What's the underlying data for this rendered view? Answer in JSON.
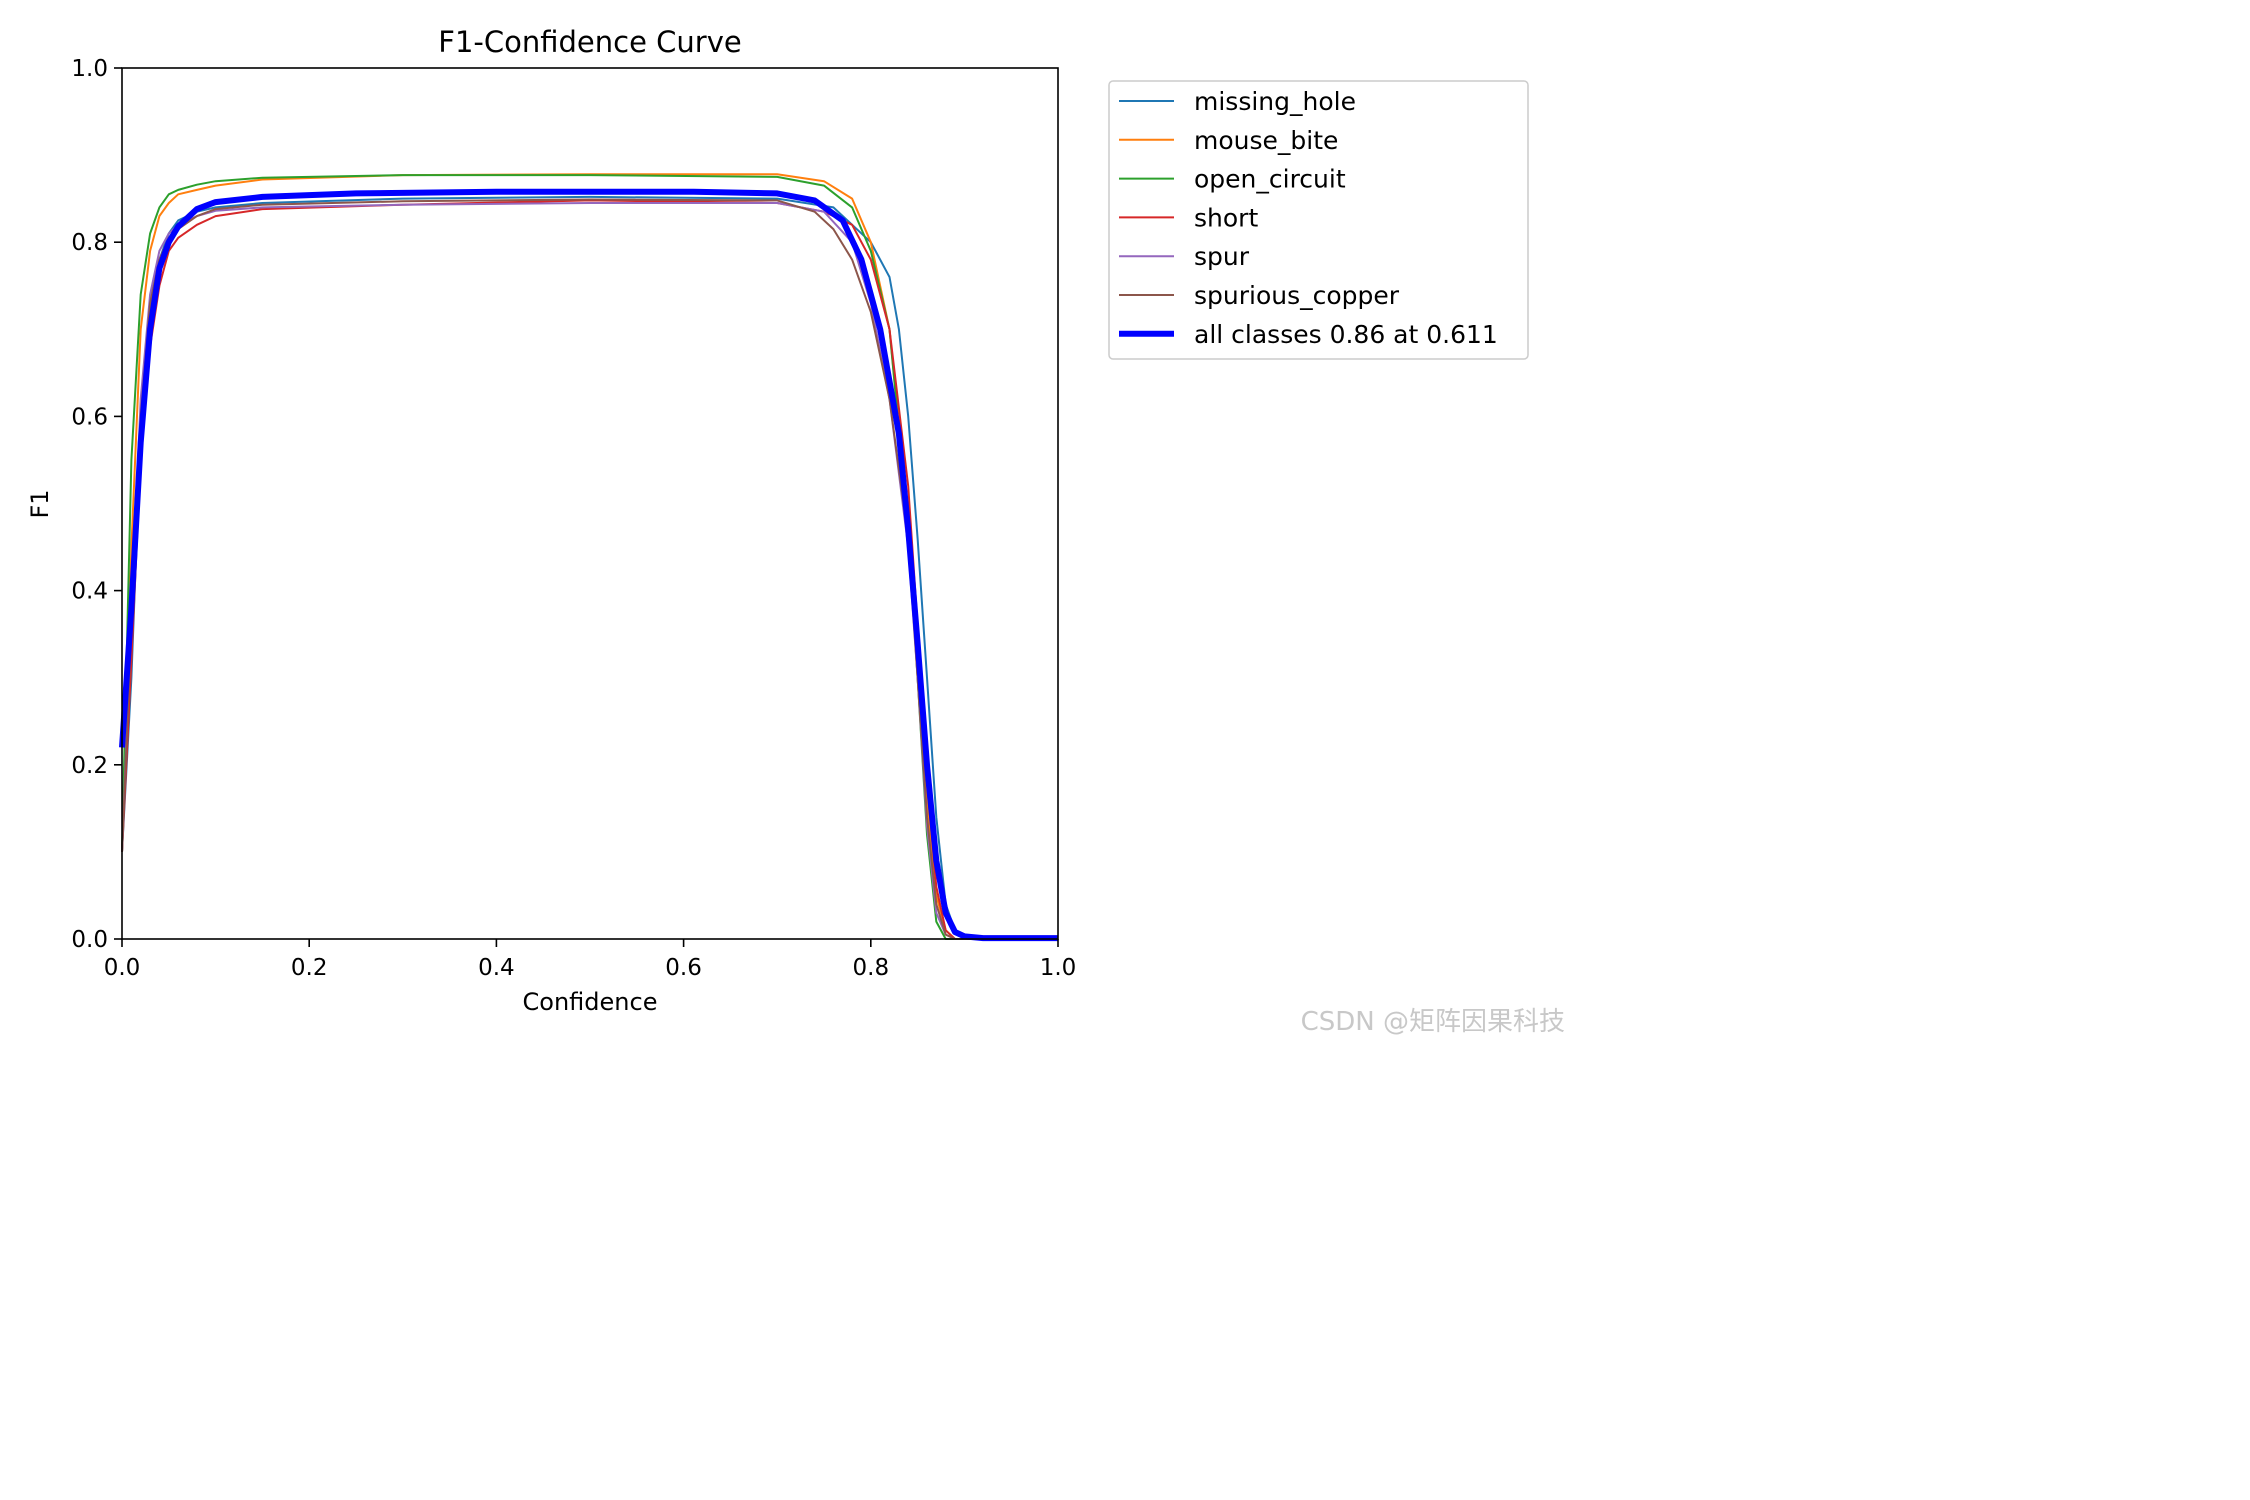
{
  "chart_data": {
    "type": "line",
    "title": "F1-Confidence Curve",
    "xlabel": "Confidence",
    "ylabel": "F1",
    "xlim": [
      0.0,
      1.0
    ],
    "ylim": [
      0.0,
      1.0
    ],
    "xticks": [
      "0.0",
      "0.2",
      "0.4",
      "0.6",
      "0.8",
      "1.0"
    ],
    "yticks": [
      "0.0",
      "0.2",
      "0.4",
      "0.6",
      "0.8",
      "1.0"
    ],
    "grid": false,
    "legend_position": "outside-right",
    "series": [
      {
        "name": "missing_hole",
        "color": "#1f77b4",
        "width": "thin",
        "x": [
          0.0,
          0.01,
          0.02,
          0.03,
          0.04,
          0.05,
          0.06,
          0.08,
          0.1,
          0.15,
          0.3,
          0.5,
          0.7,
          0.76,
          0.8,
          0.82,
          0.83,
          0.84,
          0.85,
          0.86,
          0.87,
          0.88,
          0.89,
          0.9,
          1.0
        ],
        "y": [
          0.1,
          0.3,
          0.58,
          0.72,
          0.78,
          0.81,
          0.825,
          0.835,
          0.84,
          0.845,
          0.85,
          0.852,
          0.85,
          0.84,
          0.8,
          0.76,
          0.7,
          0.6,
          0.46,
          0.3,
          0.14,
          0.04,
          0.01,
          0.0,
          0.0
        ]
      },
      {
        "name": "mouse_bite",
        "color": "#ff7f0e",
        "width": "thin",
        "x": [
          0.0,
          0.01,
          0.02,
          0.03,
          0.04,
          0.05,
          0.06,
          0.08,
          0.1,
          0.15,
          0.3,
          0.5,
          0.7,
          0.75,
          0.78,
          0.8,
          0.82,
          0.84,
          0.85,
          0.86,
          0.87,
          0.88,
          0.89,
          1.0
        ],
        "y": [
          0.1,
          0.45,
          0.7,
          0.79,
          0.83,
          0.845,
          0.855,
          0.86,
          0.865,
          0.872,
          0.877,
          0.878,
          0.878,
          0.87,
          0.85,
          0.8,
          0.7,
          0.48,
          0.32,
          0.16,
          0.05,
          0.01,
          0.0,
          0.0
        ]
      },
      {
        "name": "open_circuit",
        "color": "#2ca02c",
        "width": "thin",
        "x": [
          0.0,
          0.01,
          0.02,
          0.03,
          0.04,
          0.05,
          0.06,
          0.08,
          0.1,
          0.15,
          0.3,
          0.5,
          0.7,
          0.75,
          0.78,
          0.8,
          0.82,
          0.84,
          0.85,
          0.86,
          0.87,
          0.88,
          1.0
        ],
        "y": [
          0.1,
          0.55,
          0.74,
          0.81,
          0.84,
          0.855,
          0.86,
          0.866,
          0.87,
          0.874,
          0.877,
          0.877,
          0.875,
          0.865,
          0.84,
          0.79,
          0.7,
          0.47,
          0.3,
          0.12,
          0.02,
          0.0,
          0.0
        ]
      },
      {
        "name": "short",
        "color": "#d62728",
        "width": "thin",
        "x": [
          0.0,
          0.01,
          0.02,
          0.03,
          0.04,
          0.05,
          0.06,
          0.08,
          0.1,
          0.15,
          0.3,
          0.5,
          0.7,
          0.75,
          0.78,
          0.8,
          0.82,
          0.84,
          0.85,
          0.86,
          0.87,
          0.88,
          0.89,
          1.0
        ],
        "y": [
          0.1,
          0.32,
          0.55,
          0.68,
          0.75,
          0.79,
          0.805,
          0.82,
          0.83,
          0.838,
          0.843,
          0.848,
          0.845,
          0.835,
          0.82,
          0.78,
          0.7,
          0.52,
          0.36,
          0.18,
          0.06,
          0.01,
          0.0,
          0.0
        ]
      },
      {
        "name": "spur",
        "color": "#9467bd",
        "width": "thin",
        "x": [
          0.0,
          0.01,
          0.02,
          0.03,
          0.04,
          0.05,
          0.06,
          0.08,
          0.1,
          0.15,
          0.3,
          0.5,
          0.7,
          0.75,
          0.78,
          0.8,
          0.82,
          0.84,
          0.85,
          0.86,
          0.87,
          0.88,
          0.89,
          1.0
        ],
        "y": [
          0.1,
          0.38,
          0.62,
          0.74,
          0.79,
          0.81,
          0.82,
          0.83,
          0.836,
          0.84,
          0.843,
          0.845,
          0.845,
          0.835,
          0.8,
          0.73,
          0.62,
          0.45,
          0.3,
          0.13,
          0.03,
          0.005,
          0.0,
          0.0
        ]
      },
      {
        "name": "spurious_copper",
        "color": "#8c564b",
        "width": "thin",
        "x": [
          0.0,
          0.01,
          0.02,
          0.03,
          0.04,
          0.05,
          0.06,
          0.08,
          0.1,
          0.15,
          0.3,
          0.5,
          0.7,
          0.74,
          0.76,
          0.78,
          0.8,
          0.82,
          0.84,
          0.85,
          0.86,
          0.87,
          0.88,
          0.89,
          1.0
        ],
        "y": [
          0.1,
          0.36,
          0.6,
          0.73,
          0.78,
          0.805,
          0.815,
          0.83,
          0.838,
          0.843,
          0.847,
          0.849,
          0.848,
          0.835,
          0.815,
          0.78,
          0.72,
          0.62,
          0.46,
          0.3,
          0.14,
          0.04,
          0.005,
          0.0,
          0.0
        ]
      },
      {
        "name": "all classes 0.86 at 0.611",
        "color": "#0000ff",
        "width": "thick",
        "x": [
          0.0,
          0.01,
          0.02,
          0.03,
          0.04,
          0.05,
          0.06,
          0.08,
          0.1,
          0.15,
          0.25,
          0.4,
          0.611,
          0.7,
          0.74,
          0.77,
          0.79,
          0.81,
          0.83,
          0.84,
          0.85,
          0.86,
          0.87,
          0.88,
          0.89,
          0.9,
          0.92,
          1.0
        ],
        "y": [
          0.22,
          0.38,
          0.57,
          0.7,
          0.77,
          0.8,
          0.818,
          0.838,
          0.846,
          0.852,
          0.856,
          0.858,
          0.858,
          0.856,
          0.848,
          0.825,
          0.78,
          0.7,
          0.58,
          0.47,
          0.34,
          0.2,
          0.09,
          0.03,
          0.008,
          0.003,
          0.001,
          0.001
        ]
      }
    ]
  },
  "watermark": "CSDN @矩阵因果科技"
}
